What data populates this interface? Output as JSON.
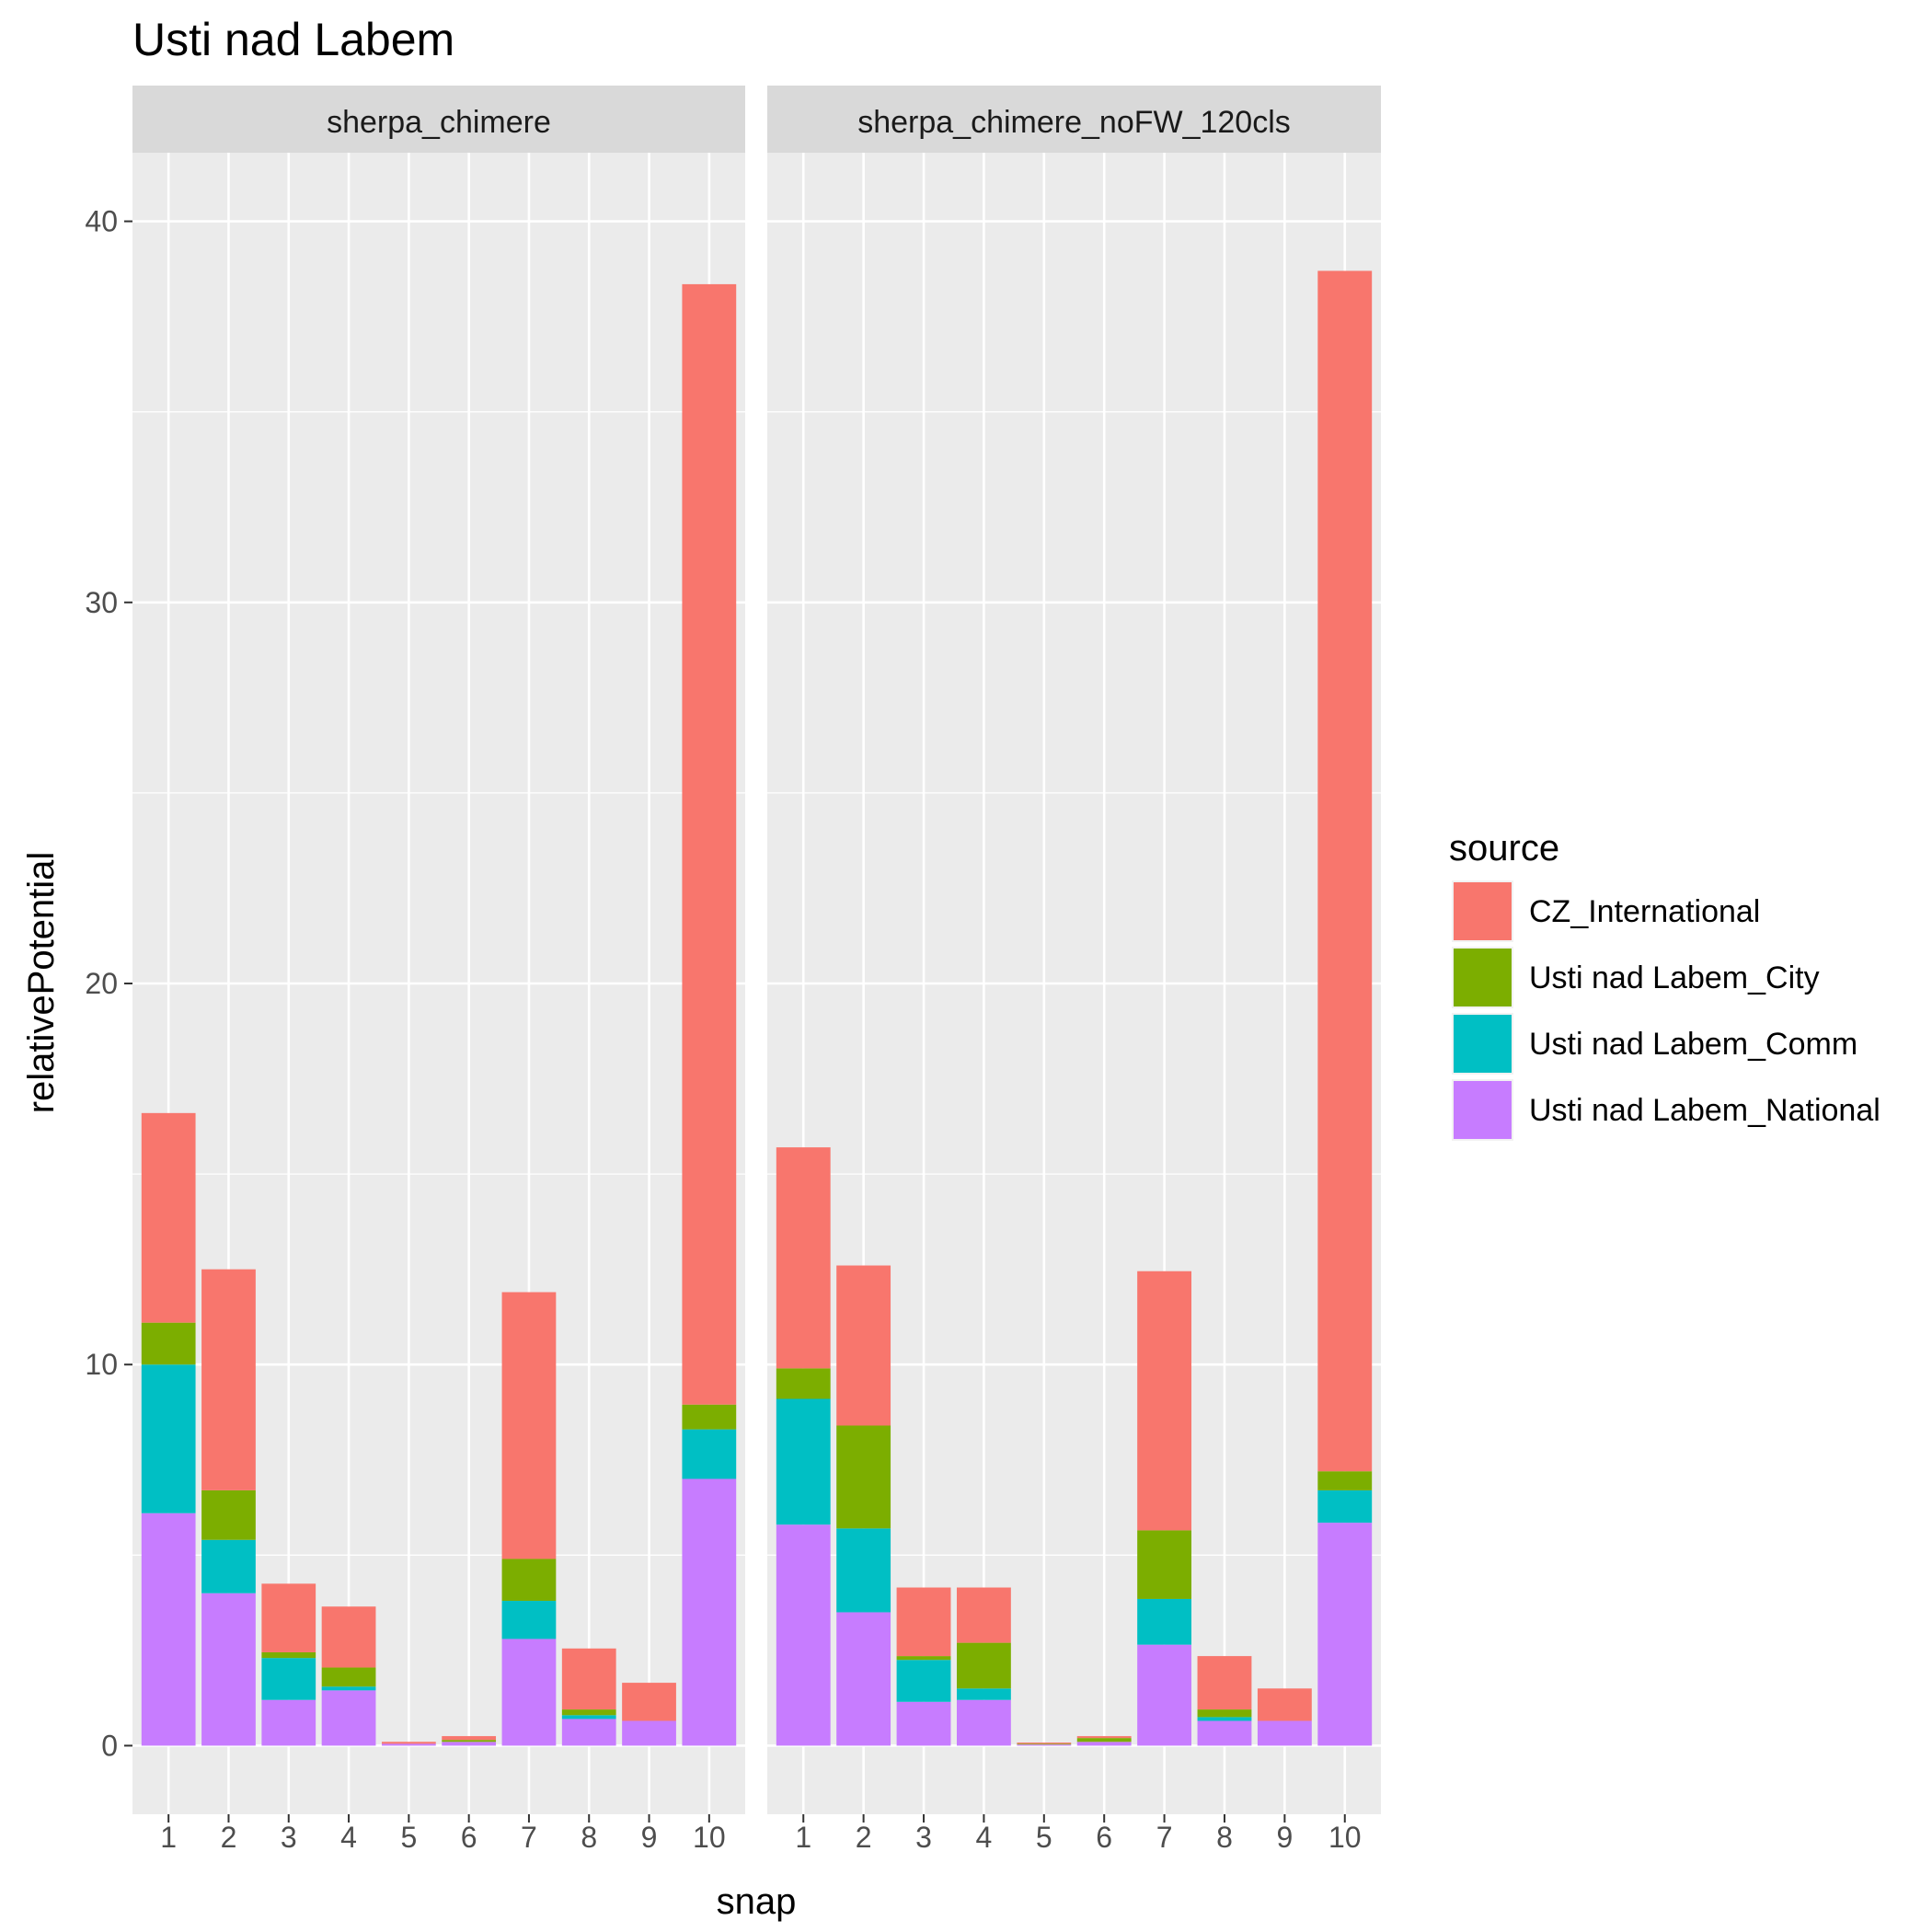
{
  "chart_data": {
    "type": "bar",
    "stacked": true,
    "title": "Usti nad Labem",
    "xlabel": "snap",
    "ylabel": "relativePotential",
    "ylim": [
      -1.8,
      41.8
    ],
    "yticks": [
      0,
      10,
      20,
      30,
      40
    ],
    "categories": [
      "1",
      "2",
      "3",
      "4",
      "5",
      "6",
      "7",
      "8",
      "9",
      "10"
    ],
    "grid": true,
    "legend": {
      "title": "source",
      "position": "right",
      "entries": [
        "CZ_International",
        "Usti nad Labem_City",
        "Usti nad Labem_Comm",
        "Usti nad Labem_National"
      ]
    },
    "colors": {
      "CZ_International": "#F8766D",
      "Usti nad Labem_City": "#7CAE00",
      "Usti nad Labem_Comm": "#00BFC4",
      "Usti nad Labem_National": "#C77CFF"
    },
    "stack_order": [
      "Usti nad Labem_National",
      "Usti nad Labem_Comm",
      "Usti nad Labem_City",
      "CZ_International"
    ],
    "panels": [
      {
        "name": "sherpa_chimere",
        "series": [
          {
            "name": "CZ_International",
            "values": [
              5.5,
              5.8,
              1.8,
              1.6,
              0.05,
              0.1,
              7.0,
              1.6,
              1.0,
              29.4
            ]
          },
          {
            "name": "Usti nad Labem_City",
            "values": [
              1.1,
              1.3,
              0.15,
              0.5,
              0.0,
              0.05,
              1.1,
              0.15,
              0.0,
              0.65
            ]
          },
          {
            "name": "Usti nad Labem_Comm",
            "values": [
              3.9,
              1.4,
              1.1,
              0.1,
              0.0,
              0.0,
              1.0,
              0.1,
              0.0,
              1.3
            ]
          },
          {
            "name": "Usti nad Labem_National",
            "values": [
              6.1,
              4.0,
              1.2,
              1.45,
              0.05,
              0.1,
              2.8,
              0.7,
              0.65,
              7.0
            ]
          }
        ]
      },
      {
        "name": "sherpa_chimere_noFW_120cls",
        "series": [
          {
            "name": "CZ_International",
            "values": [
              5.8,
              4.2,
              1.8,
              1.45,
              0.03,
              0.05,
              6.8,
              1.4,
              0.85,
              31.5
            ]
          },
          {
            "name": "Usti nad Labem_City",
            "values": [
              0.8,
              2.7,
              0.1,
              1.2,
              0.02,
              0.1,
              1.8,
              0.2,
              0.0,
              0.5
            ]
          },
          {
            "name": "Usti nad Labem_Comm",
            "values": [
              3.3,
              2.2,
              1.1,
              0.3,
              0.0,
              0.0,
              1.2,
              0.1,
              0.0,
              0.85
            ]
          },
          {
            "name": "Usti nad Labem_National",
            "values": [
              5.8,
              3.5,
              1.15,
              1.2,
              0.03,
              0.1,
              2.65,
              0.65,
              0.65,
              5.85
            ]
          }
        ]
      }
    ]
  }
}
